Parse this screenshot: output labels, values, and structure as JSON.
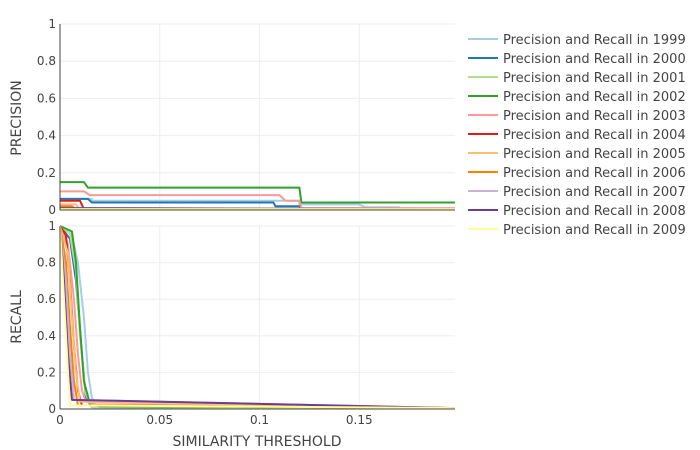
{
  "chart_data": {
    "type": "line",
    "xlabel": "SIMILARITY THRESHOLD",
    "xlim": [
      0,
      0.198
    ],
    "x_ticks": [
      {
        "value": 0,
        "label": "0"
      },
      {
        "value": 0.05,
        "label": "0.05"
      },
      {
        "value": 0.1,
        "label": "0.1"
      },
      {
        "value": 0.15,
        "label": "0.15"
      }
    ],
    "y_ticks": [
      {
        "value": 0,
        "label": "0"
      },
      {
        "value": 0.2,
        "label": "0.2"
      },
      {
        "value": 0.4,
        "label": "0.4"
      },
      {
        "value": 0.6,
        "label": "0.6"
      },
      {
        "value": 0.8,
        "label": "0.8"
      },
      {
        "value": 1,
        "label": "1"
      }
    ],
    "grid": true,
    "legend_position": "right",
    "panels": [
      {
        "id": "precision",
        "ylabel": "PRECISION",
        "ylim": [
          0,
          1
        ]
      },
      {
        "id": "recall",
        "ylabel": "RECALL",
        "ylim": [
          0,
          1
        ]
      }
    ],
    "series": [
      {
        "name": "Precision and Recall in 1999",
        "color": "#a6cee3",
        "precision": [
          [
            0,
            0.06
          ],
          [
            0.016,
            0.06
          ],
          [
            0.016,
            0.05
          ],
          [
            0.12,
            0.05
          ],
          [
            0.12,
            0.03
          ],
          [
            0.15,
            0.03
          ],
          [
            0.153,
            0.015
          ],
          [
            0.17,
            0.015
          ],
          [
            0.17,
            0.005
          ],
          [
            0.198,
            0.005
          ]
        ],
        "recall": [
          [
            0,
            1
          ],
          [
            0.006,
            0.95
          ],
          [
            0.009,
            0.8
          ],
          [
            0.012,
            0.5
          ],
          [
            0.014,
            0.2
          ],
          [
            0.016,
            0.06
          ],
          [
            0.018,
            0.02
          ],
          [
            0.198,
            0.005
          ]
        ]
      },
      {
        "name": "Precision and Recall in 2000",
        "color": "#1f78b4",
        "precision": [
          [
            0,
            0.06
          ],
          [
            0.014,
            0.06
          ],
          [
            0.016,
            0.04
          ],
          [
            0.107,
            0.04
          ],
          [
            0.108,
            0.02
          ],
          [
            0.12,
            0.02
          ],
          [
            0.121,
            0.005
          ],
          [
            0.198,
            0.005
          ]
        ],
        "recall": [
          [
            0,
            1
          ],
          [
            0.005,
            0.93
          ],
          [
            0.008,
            0.7
          ],
          [
            0.011,
            0.3
          ],
          [
            0.013,
            0.06
          ],
          [
            0.016,
            0.01
          ],
          [
            0.198,
            0.005
          ]
        ]
      },
      {
        "name": "Precision and Recall in 2001",
        "color": "#b2df8a",
        "precision": [
          [
            0,
            0.02
          ],
          [
            0.005,
            0.005
          ],
          [
            0.198,
            0.005
          ]
        ],
        "recall": [
          [
            0,
            1
          ],
          [
            0.005,
            0.96
          ],
          [
            0.008,
            0.75
          ],
          [
            0.01,
            0.4
          ],
          [
            0.013,
            0.08
          ],
          [
            0.016,
            0.01
          ],
          [
            0.198,
            0.005
          ]
        ]
      },
      {
        "name": "Precision and Recall in 2002",
        "color": "#33a02c",
        "precision": [
          [
            0,
            0.15
          ],
          [
            0.012,
            0.15
          ],
          [
            0.014,
            0.12
          ],
          [
            0.12,
            0.12
          ],
          [
            0.121,
            0.04
          ],
          [
            0.198,
            0.04
          ]
        ],
        "recall": [
          [
            0,
            1
          ],
          [
            0.006,
            0.97
          ],
          [
            0.008,
            0.8
          ],
          [
            0.01,
            0.45
          ],
          [
            0.012,
            0.15
          ],
          [
            0.015,
            0.03
          ],
          [
            0.02,
            0.015
          ],
          [
            0.16,
            0.01
          ],
          [
            0.198,
            0.005
          ]
        ]
      },
      {
        "name": "Precision and Recall in 2003",
        "color": "#fb9a99",
        "precision": [
          [
            0,
            0.1
          ],
          [
            0.012,
            0.1
          ],
          [
            0.015,
            0.08
          ],
          [
            0.11,
            0.08
          ],
          [
            0.113,
            0.05
          ],
          [
            0.12,
            0.05
          ],
          [
            0.121,
            0.01
          ],
          [
            0.198,
            0.01
          ]
        ],
        "recall": [
          [
            0,
            1
          ],
          [
            0.004,
            0.9
          ],
          [
            0.007,
            0.6
          ],
          [
            0.009,
            0.3
          ],
          [
            0.011,
            0.1
          ],
          [
            0.013,
            0.04
          ],
          [
            0.018,
            0.025
          ],
          [
            0.11,
            0.02
          ],
          [
            0.12,
            0.015
          ],
          [
            0.198,
            0.005
          ]
        ]
      },
      {
        "name": "Precision and Recall in 2004",
        "color": "#e31a1c",
        "precision": [
          [
            0,
            0.05
          ],
          [
            0.01,
            0.05
          ],
          [
            0.012,
            0.005
          ],
          [
            0.198,
            0.005
          ]
        ],
        "recall": [
          [
            0,
            1
          ],
          [
            0.003,
            0.95
          ],
          [
            0.005,
            0.7
          ],
          [
            0.007,
            0.35
          ],
          [
            0.009,
            0.1
          ],
          [
            0.011,
            0.02
          ],
          [
            0.198,
            0.005
          ]
        ]
      },
      {
        "name": "Precision and Recall in 2005",
        "color": "#fdbf6f",
        "precision": [
          [
            0,
            0.03
          ],
          [
            0.008,
            0.03
          ],
          [
            0.01,
            0.005
          ],
          [
            0.198,
            0.005
          ]
        ],
        "recall": [
          [
            0,
            1
          ],
          [
            0.004,
            0.85
          ],
          [
            0.006,
            0.5
          ],
          [
            0.008,
            0.2
          ],
          [
            0.01,
            0.04
          ],
          [
            0.198,
            0.005
          ]
        ]
      },
      {
        "name": "Precision and Recall in 2006",
        "color": "#ff7f00",
        "precision": [
          [
            0,
            0.02
          ],
          [
            0.006,
            0.02
          ],
          [
            0.008,
            0.005
          ],
          [
            0.198,
            0.005
          ]
        ],
        "recall": [
          [
            0,
            1
          ],
          [
            0.003,
            0.8
          ],
          [
            0.005,
            0.45
          ],
          [
            0.007,
            0.15
          ],
          [
            0.009,
            0.02
          ],
          [
            0.198,
            0.005
          ]
        ]
      },
      {
        "name": "Precision and Recall in 2007",
        "color": "#cab2d6",
        "precision": [
          [
            0,
            0.01
          ],
          [
            0.198,
            0.005
          ]
        ],
        "recall": [
          [
            0,
            1
          ],
          [
            0.003,
            0.7
          ],
          [
            0.005,
            0.3
          ],
          [
            0.007,
            0.05
          ],
          [
            0.198,
            0.005
          ]
        ]
      },
      {
        "name": "Precision and Recall in 2008",
        "color": "#6a3d9a",
        "precision": [
          [
            0,
            0.01
          ],
          [
            0.198,
            0.005
          ]
        ],
        "recall": [
          [
            0,
            1
          ],
          [
            0.002,
            0.7
          ],
          [
            0.004,
            0.3
          ],
          [
            0.006,
            0.05
          ],
          [
            0.198,
            0.005
          ]
        ]
      },
      {
        "name": "Precision and Recall in 2009",
        "color": "#ffff99",
        "precision": [
          [
            0,
            0.005
          ],
          [
            0.198,
            0.005
          ]
        ],
        "recall": [
          [
            0,
            1
          ],
          [
            0.002,
            0.6
          ],
          [
            0.004,
            0.2
          ],
          [
            0.005,
            0.02
          ],
          [
            0.198,
            0.005
          ]
        ]
      }
    ]
  }
}
